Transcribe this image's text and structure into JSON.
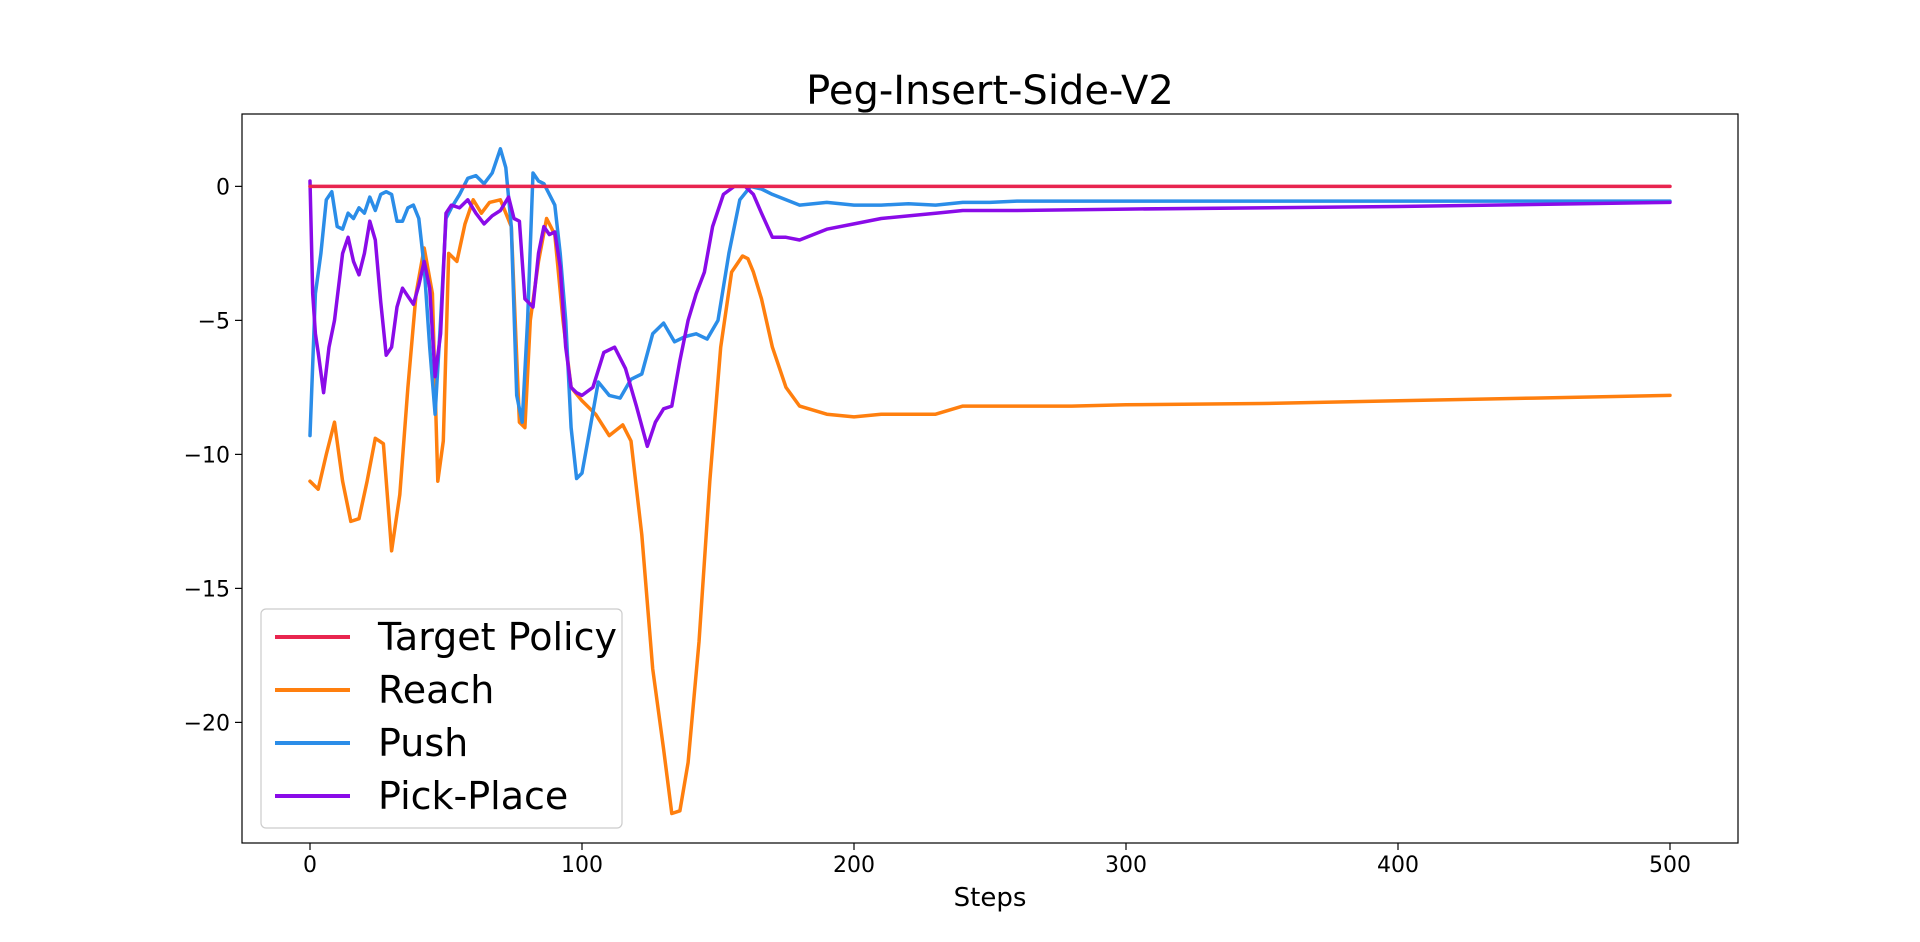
{
  "chart_data": {
    "type": "line",
    "title": "Peg-Insert-Side-V2",
    "xlabel": "Steps",
    "ylabel": "",
    "xlim": [
      -25,
      525
    ],
    "ylim": [
      -24.5,
      2.7
    ],
    "xticks": [
      0,
      100,
      200,
      300,
      400,
      500
    ],
    "yticks": [
      0,
      -5,
      -10,
      -15,
      -20
    ],
    "ytick_labels": [
      "0",
      "−5",
      "−10",
      "−15",
      "−20"
    ],
    "grid": false,
    "legend_position": "lower-left",
    "series": [
      {
        "name": "Target Policy",
        "color": "#e8254f",
        "x": [
          0,
          500
        ],
        "y": [
          0,
          0
        ]
      },
      {
        "name": "Reach",
        "color": "#ff7f0e",
        "x": [
          0,
          3,
          6,
          9,
          12,
          15,
          18,
          21,
          24,
          27,
          30,
          33,
          36,
          39,
          42,
          45,
          47,
          49,
          51,
          54,
          57,
          60,
          63,
          66,
          70,
          74,
          77,
          79,
          81,
          84,
          87,
          90,
          93,
          96,
          100,
          105,
          110,
          115,
          118,
          122,
          126,
          130,
          133,
          136,
          139,
          143,
          147,
          151,
          155,
          159,
          161,
          163,
          166,
          170,
          175,
          180,
          190,
          200,
          210,
          230,
          240,
          260,
          280,
          300,
          350,
          400,
          450,
          500
        ],
        "y": [
          -11,
          -11.3,
          -10,
          -8.8,
          -11,
          -12.5,
          -12.4,
          -11,
          -9.4,
          -9.6,
          -13.6,
          -11.5,
          -7.5,
          -4,
          -2.3,
          -4,
          -11,
          -9.5,
          -2.5,
          -2.8,
          -1.4,
          -0.5,
          -1,
          -0.6,
          -0.5,
          -1.5,
          -8.8,
          -9,
          -5,
          -2.8,
          -1.2,
          -1.8,
          -5,
          -7.5,
          -8,
          -8.5,
          -9.3,
          -8.9,
          -9.5,
          -13,
          -18,
          -21,
          -23.4,
          -23.3,
          -21.5,
          -17,
          -11,
          -6,
          -3.2,
          -2.6,
          -2.7,
          -3.2,
          -4.2,
          -6,
          -7.5,
          -8.2,
          -8.5,
          -8.6,
          -8.5,
          -8.5,
          -8.2,
          -8.2,
          -8.2,
          -8.15,
          -8.1,
          -8.0,
          -7.9,
          -7.8
        ]
      },
      {
        "name": "Push",
        "color": "#2b8de8",
        "x": [
          0,
          2,
          4,
          6,
          8,
          10,
          12,
          14,
          16,
          18,
          20,
          22,
          24,
          26,
          28,
          30,
          32,
          34,
          36,
          38,
          40,
          42,
          44,
          46,
          48,
          50,
          52,
          55,
          58,
          61,
          64,
          67,
          70,
          72,
          74,
          76,
          78,
          80,
          82,
          84,
          86,
          88,
          90,
          92,
          94,
          96,
          98,
          100,
          103,
          106,
          110,
          114,
          118,
          122,
          126,
          130,
          134,
          138,
          142,
          146,
          150,
          154,
          158,
          162,
          166,
          170,
          175,
          180,
          190,
          200,
          210,
          220,
          230,
          240,
          250,
          260,
          280,
          300,
          350,
          400,
          450,
          500
        ],
        "y": [
          -9.3,
          -4,
          -2.5,
          -0.5,
          -0.2,
          -1.5,
          -1.6,
          -1,
          -1.2,
          -0.8,
          -1,
          -0.4,
          -0.9,
          -0.3,
          -0.2,
          -0.3,
          -1.3,
          -1.3,
          -0.8,
          -0.7,
          -1.2,
          -3,
          -6,
          -8.5,
          -5,
          -1.2,
          -0.8,
          -0.3,
          0.3,
          0.4,
          0.1,
          0.5,
          1.4,
          0.7,
          -1.5,
          -7.8,
          -8.8,
          -5,
          0.5,
          0.2,
          0.1,
          -0.3,
          -0.7,
          -2.5,
          -5,
          -9,
          -10.9,
          -10.7,
          -9,
          -7.3,
          -7.8,
          -7.9,
          -7.2,
          -7,
          -5.5,
          -5.1,
          -5.8,
          -5.6,
          -5.5,
          -5.7,
          -5,
          -2.5,
          -0.5,
          0.0,
          -0.1,
          -0.3,
          -0.5,
          -0.7,
          -0.6,
          -0.7,
          -0.7,
          -0.65,
          -0.7,
          -0.6,
          -0.6,
          -0.55,
          -0.55,
          -0.55,
          -0.55,
          -0.55,
          -0.55,
          -0.55
        ]
      },
      {
        "name": "Pick-Place",
        "color": "#8a0be8",
        "x": [
          0,
          1,
          2,
          3,
          5,
          7,
          9,
          12,
          14,
          16,
          18,
          20,
          22,
          24,
          26,
          28,
          30,
          32,
          34,
          36,
          38,
          40,
          42,
          44,
          46,
          48,
          50,
          52,
          55,
          58,
          61,
          64,
          67,
          70,
          73,
          75,
          77,
          79,
          82,
          84,
          86,
          88,
          90,
          92,
          94,
          96,
          98,
          100,
          104,
          108,
          112,
          116,
          120,
          124,
          127,
          130,
          133,
          136,
          139,
          142,
          145,
          148,
          152,
          156,
          160,
          163,
          166,
          170,
          175,
          180,
          190,
          200,
          210,
          230,
          240,
          260,
          300,
          400,
          500
        ],
        "y": [
          0.2,
          -4,
          -5.5,
          -6.2,
          -7.7,
          -6,
          -5,
          -2.5,
          -1.9,
          -2.8,
          -3.3,
          -2.5,
          -1.3,
          -2,
          -4.3,
          -6.3,
          -6,
          -4.5,
          -3.8,
          -4.1,
          -4.4,
          -3.7,
          -2.8,
          -3.8,
          -7.1,
          -5.5,
          -1,
          -0.7,
          -0.8,
          -0.5,
          -1,
          -1.4,
          -1.1,
          -0.9,
          -0.4,
          -1.2,
          -1.3,
          -4.2,
          -4.5,
          -2.5,
          -1.5,
          -1.8,
          -1.7,
          -3,
          -6,
          -7.5,
          -7.7,
          -7.8,
          -7.5,
          -6.2,
          -6,
          -6.8,
          -8.2,
          -9.7,
          -8.8,
          -8.3,
          -8.2,
          -6.5,
          -5,
          -4,
          -3.2,
          -1.5,
          -0.3,
          0,
          0.0,
          -0.3,
          -1.0,
          -1.9,
          -1.9,
          -2.0,
          -1.6,
          -1.4,
          -1.2,
          -1.0,
          -0.9,
          -0.9,
          -0.85,
          -0.75,
          -0.6
        ]
      }
    ]
  }
}
